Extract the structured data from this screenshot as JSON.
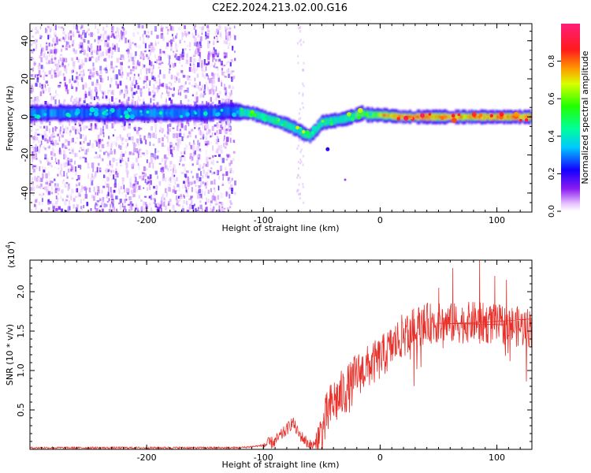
{
  "title": "C2E2.2024.213.02.00.G16",
  "chart_data": [
    {
      "type": "heatmap",
      "xlabel": "Height of straight line (km)",
      "ylabel": "Frequency (Hz)",
      "xlim": [
        -300,
        130
      ],
      "ylim": [
        -50,
        49
      ],
      "x_ticks": [
        -200,
        -100,
        0,
        100
      ],
      "y_ticks": [
        -40,
        -20,
        0,
        20,
        40
      ],
      "x_tick_labels": [
        "-200",
        "-100",
        "0",
        "100"
      ],
      "y_tick_labels": [
        "-40",
        "-20",
        "0",
        "20",
        "40"
      ],
      "colorbar": {
        "label": "Normalized spectral amplitude",
        "range": [
          0,
          1
        ],
        "ticks": [
          0.0,
          0.2,
          0.4,
          0.6,
          0.8
        ],
        "tick_labels": [
          "0.0",
          "0.2",
          "0.4",
          "0.6",
          "0.8"
        ],
        "colormap": "rainbow (violet-blue-cyan-green-yellow-red-magenta)"
      },
      "ridge": {
        "x": [
          -300,
          -250,
          -200,
          -150,
          -130,
          -110,
          -100,
          -90,
          -80,
          -70,
          -65,
          -60,
          -55,
          -50,
          -40,
          -30,
          -20,
          -15,
          -10,
          0,
          20,
          50,
          100,
          130
        ],
        "y": [
          2,
          2,
          2,
          2,
          3,
          2,
          0,
          -2,
          -4,
          -7,
          -9,
          -10,
          -7,
          -3,
          -2,
          -1,
          1,
          2,
          1,
          1,
          0,
          0,
          0,
          0
        ]
      },
      "noise_extent_x": [
        -300,
        -125
      ]
    },
    {
      "type": "line",
      "xlabel": "Height of straight line (km)",
      "ylabel": "SNR (10 * v/v)",
      "y_multiplier": "(x10",
      "y_multiplier_exp": "4",
      "y_multiplier_close": ")",
      "xlim": [
        -300,
        130
      ],
      "ylim": [
        0,
        2.4
      ],
      "x_ticks": [
        -200,
        -100,
        0,
        100
      ],
      "y_ticks": [
        0.5,
        1.0,
        1.5,
        2.0
      ],
      "x_tick_labels": [
        "-200",
        "-100",
        "0",
        "100"
      ],
      "y_tick_labels": [
        "0.5",
        "1.0",
        "1.5",
        "2.0"
      ],
      "line_color": "#e8302a",
      "envelope": {
        "x": [
          -300,
          -120,
          -100,
          -90,
          -80,
          -75,
          -70,
          -60,
          -55,
          -50,
          -45,
          -40,
          -35,
          -30,
          -25,
          -20,
          -10,
          0,
          10,
          20,
          30,
          40,
          50,
          60,
          70,
          80,
          90,
          100,
          110,
          120,
          130
        ],
        "y": [
          0.02,
          0.02,
          0.05,
          0.1,
          0.25,
          0.35,
          0.2,
          0.05,
          0.05,
          0.2,
          0.45,
          0.6,
          0.65,
          0.75,
          0.8,
          0.95,
          1.05,
          1.15,
          1.3,
          1.45,
          1.55,
          1.6,
          1.6,
          1.6,
          1.6,
          1.62,
          1.6,
          1.58,
          1.58,
          1.55,
          1.55
        ]
      },
      "peaks": [
        {
          "x": 85,
          "y": 2.4
        },
        {
          "x": 62,
          "y": 2.3
        },
        {
          "x": 98,
          "y": 2.2
        },
        {
          "x": 50,
          "y": 2.05
        },
        {
          "x": 108,
          "y": 2.15
        }
      ]
    }
  ]
}
